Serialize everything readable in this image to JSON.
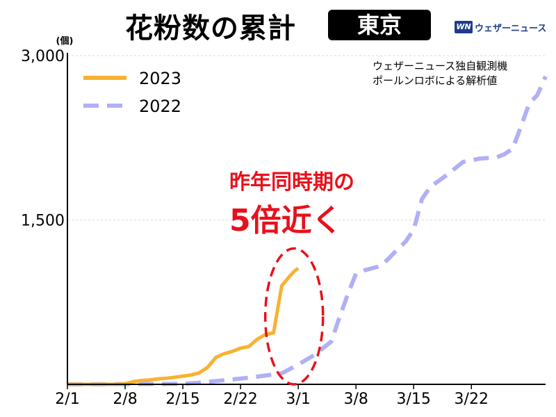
{
  "header": {
    "title": "花粉数の累計",
    "city": "東京",
    "brand_logo": "WN",
    "brand_name": "ウェザーニュース"
  },
  "source_note": [
    "ウェザーニュース独自観測機",
    "ポールンロボによる解析値"
  ],
  "callout": [
    "昨年同時期の",
    "5倍近く"
  ],
  "colors": {
    "series_2023": "#f8b232",
    "series_2022": "#b0b0f5",
    "callout": "#e8101c"
  },
  "chart_data": {
    "type": "line",
    "unit": "(個)",
    "ylim": [
      0,
      3000
    ],
    "yticks": [
      3000,
      1500
    ],
    "ytick_labels": [
      "3,000",
      "1,500"
    ],
    "xticks": [
      "2/1",
      "2/8",
      "2/15",
      "2/22",
      "3/1",
      "3/8",
      "3/15",
      "3/22"
    ],
    "xtick_days": [
      0,
      7,
      14,
      21,
      28,
      35,
      42,
      49
    ],
    "xlim_days": [
      0,
      58
    ],
    "grid": "horizontal dashed",
    "legend_position": "top-left",
    "series": [
      {
        "name": "2023",
        "style": "solid",
        "x_days": [
          0,
          4,
          5,
          6,
          7,
          8,
          9,
          10,
          11,
          12,
          13,
          14,
          15,
          16,
          17,
          18,
          19,
          20,
          21,
          22,
          23,
          24,
          25,
          26,
          27,
          27.5,
          28
        ],
        "values": [
          0,
          0,
          0,
          0,
          5,
          25,
          35,
          40,
          50,
          55,
          65,
          75,
          85,
          105,
          155,
          245,
          280,
          300,
          330,
          345,
          410,
          455,
          470,
          900,
          990,
          1030,
          1060
        ]
      },
      {
        "name": "2022",
        "style": "dashed",
        "x_days": [
          0,
          14,
          16,
          18,
          20,
          22,
          24,
          26,
          28,
          30,
          32,
          33,
          34,
          35,
          36,
          37,
          38,
          39,
          40,
          41,
          42,
          43,
          44,
          46,
          48,
          50,
          52,
          53,
          54,
          55,
          56,
          57,
          58
        ],
        "values": [
          0,
          5,
          15,
          30,
          45,
          60,
          80,
          100,
          180,
          270,
          390,
          610,
          820,
          1010,
          1040,
          1060,
          1080,
          1150,
          1230,
          1300,
          1410,
          1690,
          1800,
          1910,
          2030,
          2060,
          2070,
          2100,
          2150,
          2350,
          2560,
          2640,
          2810
        ]
      }
    ],
    "annotation": {
      "type": "ellipse",
      "x_days": [
        24,
        31
      ],
      "y_range": [
        0,
        1240
      ]
    }
  }
}
